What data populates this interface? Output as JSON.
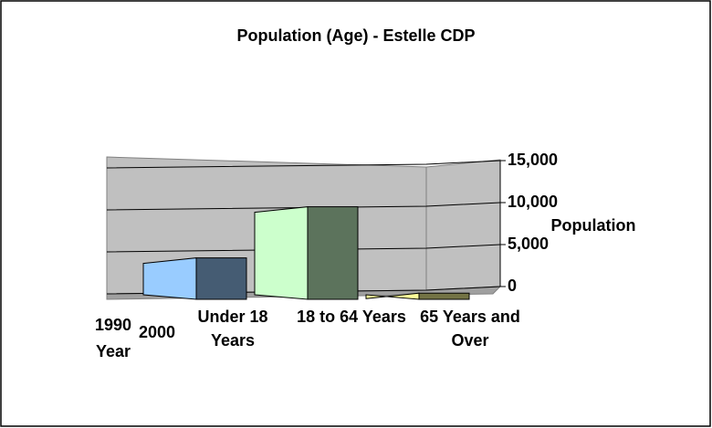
{
  "chart_data": {
    "type": "bar3d",
    "title": "Population (Age) - Estelle CDP",
    "categories": [
      "Under 18 Years",
      "18 to 64 Years",
      "65 Years and Over"
    ],
    "values": [
      4700,
      10500,
      700
    ],
    "colors": [
      "#99ccff",
      "#ccffcc",
      "#ffff99"
    ],
    "depth_categories": [
      "1990",
      "2000"
    ],
    "depth_label": "Year",
    "y_label": "Population",
    "ylim": [
      0,
      15000
    ],
    "yticks": [
      0,
      {
        "value": 5000,
        "label": "5,000"
      },
      {
        "value": 10000,
        "label": "10,000"
      },
      {
        "value": 15000,
        "label": "15,000"
      }
    ],
    "grid": true
  }
}
